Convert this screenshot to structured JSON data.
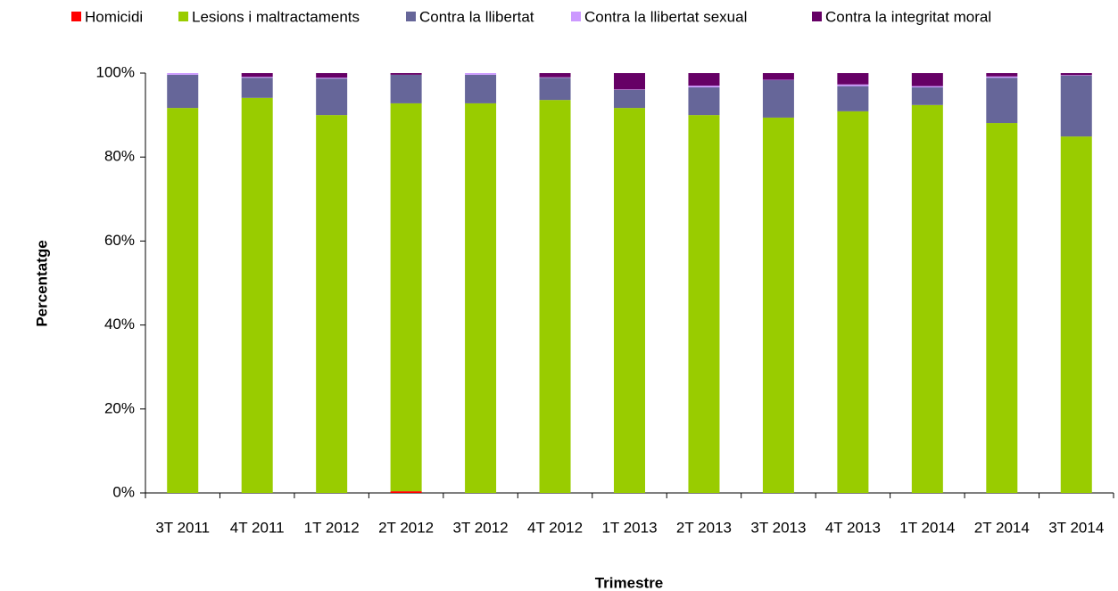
{
  "chart_data": {
    "type": "stacked_bar",
    "x_label": "Trimestre",
    "y_label": "Percentatge",
    "categories": [
      "3T 2011",
      "4T 2011",
      "1T 2012",
      "2T 2012",
      "3T 2012",
      "4T 2012",
      "1T 2013",
      "2T 2013",
      "3T 2013",
      "4T 2013",
      "1T 2014",
      "2T 2014",
      "3T 2014"
    ],
    "series": [
      {
        "name": "Homicidi",
        "color": "#ff0000",
        "values": [
          0,
          0,
          0,
          0.4,
          0,
          0,
          0,
          0,
          0,
          0,
          0,
          0,
          0
        ]
      },
      {
        "name": "Lesions i maltractaments",
        "color": "#99cc00",
        "values": [
          91.7,
          94.1,
          90.0,
          92.4,
          92.8,
          93.6,
          91.7,
          90.0,
          89.4,
          90.9,
          92.4,
          88.1,
          84.9
        ]
      },
      {
        "name": "Contra la llibertat",
        "color": "#666699",
        "values": [
          7.9,
          4.8,
          8.7,
          6.8,
          6.8,
          5.3,
          4.3,
          6.6,
          8.9,
          6.0,
          4.2,
          10.8,
          14.5
        ]
      },
      {
        "name": "Contra la llibertat sexual",
        "color": "#cc99ff",
        "values": [
          0.4,
          0.2,
          0.2,
          0,
          0.4,
          0.1,
          0.1,
          0.4,
          0.1,
          0.4,
          0.3,
          0.3,
          0.1
        ]
      },
      {
        "name": "Contra la integritat moral",
        "color": "#660066",
        "values": [
          0,
          0.9,
          1.1,
          0.4,
          0,
          1.0,
          3.9,
          3.0,
          1.6,
          2.7,
          3.1,
          0.8,
          0.5
        ]
      }
    ],
    "ylim": [
      0,
      100
    ],
    "yticks": [
      {
        "value": 0,
        "label": "0%"
      },
      {
        "value": 20,
        "label": "20%"
      },
      {
        "value": 40,
        "label": "40%"
      },
      {
        "value": 60,
        "label": "60%"
      },
      {
        "value": 80,
        "label": "80%"
      },
      {
        "value": 100,
        "label": "100%"
      }
    ],
    "legend": "top"
  }
}
